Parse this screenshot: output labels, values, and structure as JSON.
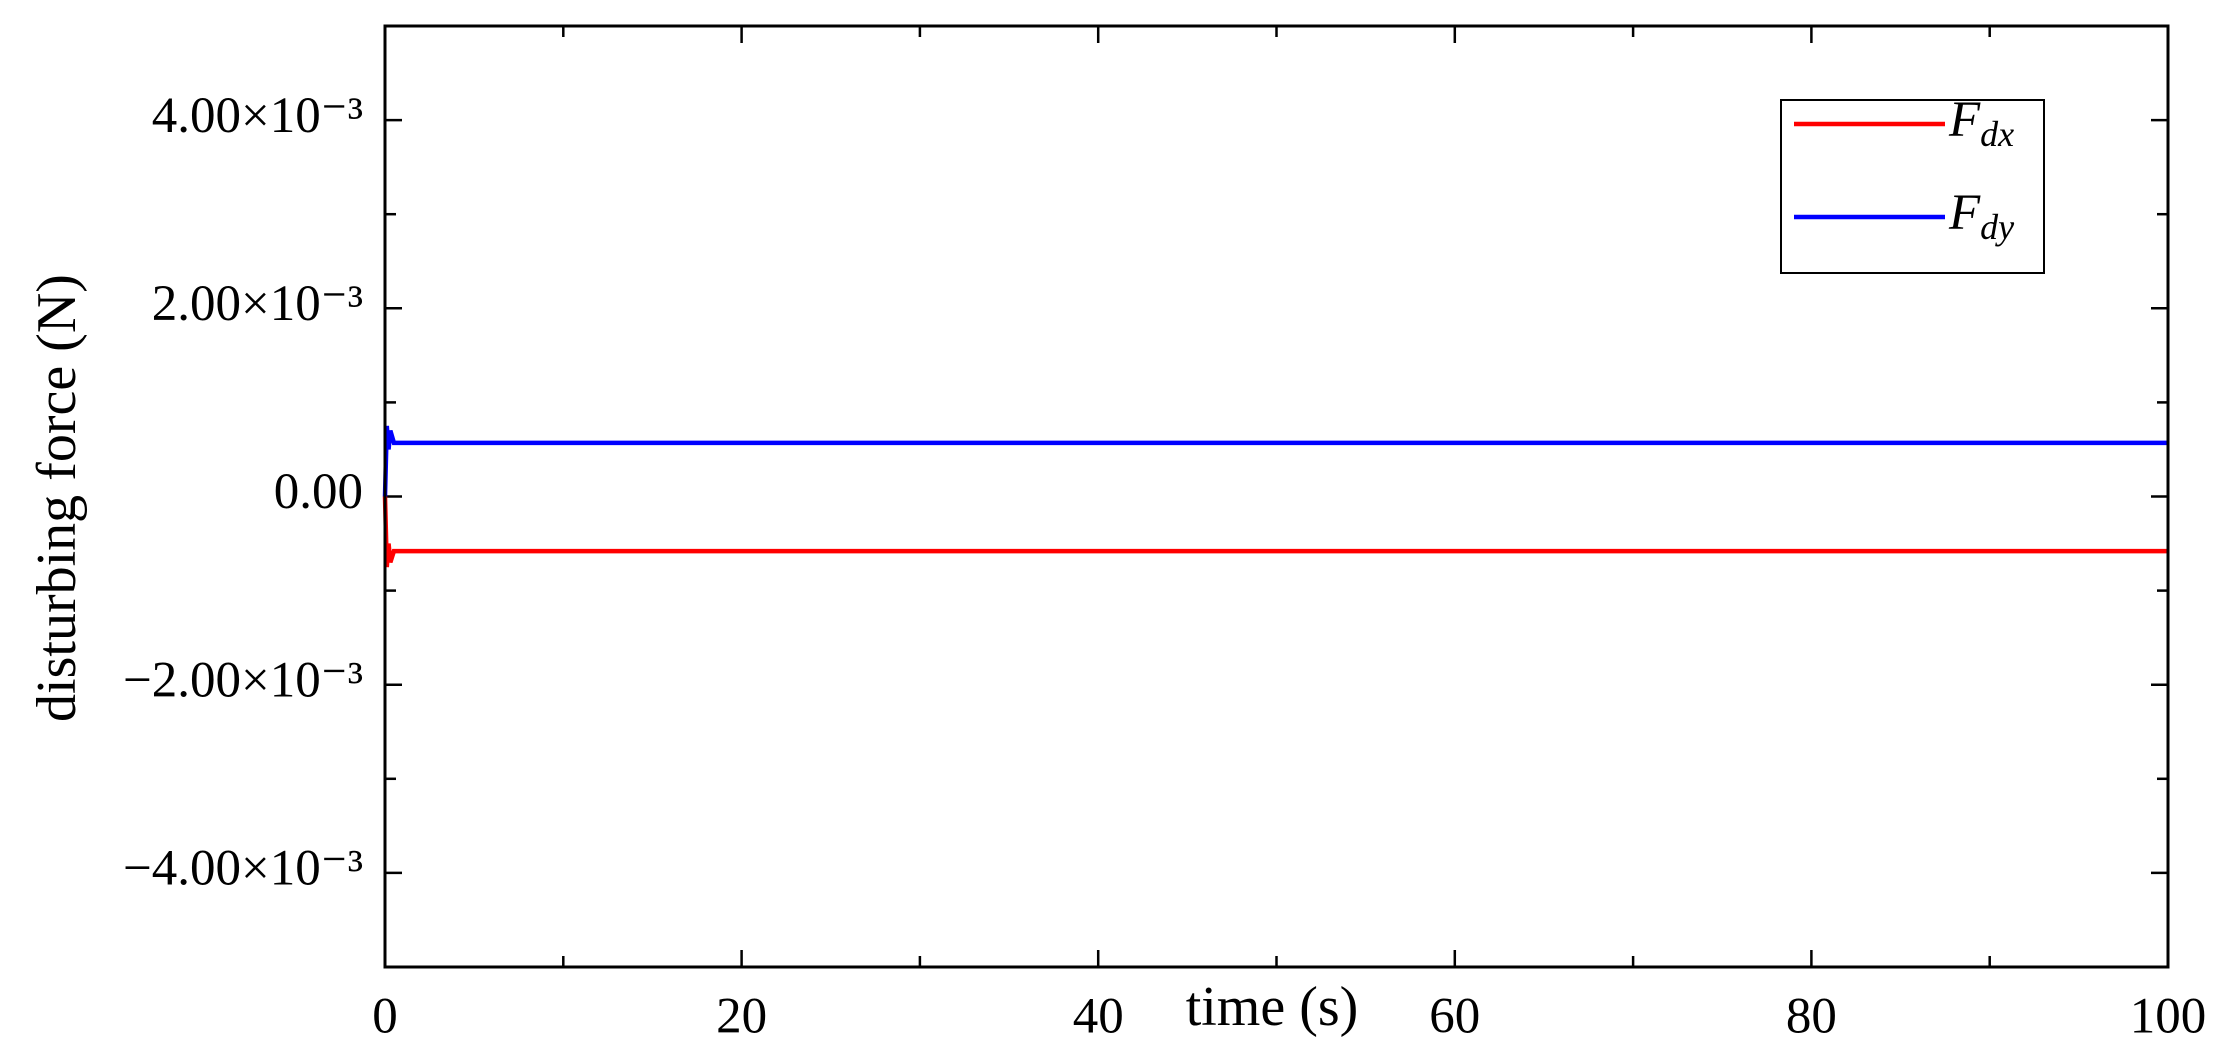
{
  "chart_data": {
    "type": "line",
    "xlabel": "time (s)",
    "ylabel": "disturbing force (N)",
    "x": [
      0,
      0.1,
      0.2,
      0.3,
      0.5,
      1,
      100
    ],
    "series": [
      {
        "name": "Fdx",
        "color": "#ff0000",
        "values": [
          0,
          -0.00075,
          -0.0005,
          -0.0007,
          -0.00058,
          -0.00058,
          -0.00058
        ]
      },
      {
        "name": "Fdy",
        "color": "#0000ff",
        "values": [
          0,
          0.00075,
          0.0005,
          0.0007,
          0.00057,
          0.00057,
          0.00057
        ]
      }
    ],
    "xlim": [
      0,
      100
    ],
    "xticks": [
      0,
      20,
      40,
      60,
      80,
      100
    ],
    "xminorticks": [
      10,
      30,
      50,
      70,
      90
    ],
    "ylim": [
      -0.005,
      0.005
    ],
    "yticks": [
      {
        "value": -0.004,
        "label": "−4.00×10⁻³"
      },
      {
        "value": -0.002,
        "label": "−2.00×10⁻³"
      },
      {
        "value": 0,
        "label": "0.00"
      },
      {
        "value": 0.002,
        "label": "2.00×10⁻³"
      },
      {
        "value": 0.004,
        "label": "4.00×10⁻³"
      }
    ],
    "yminorticks": [
      -0.003,
      -0.001,
      0.001,
      0.003
    ],
    "legend": "upper right"
  }
}
